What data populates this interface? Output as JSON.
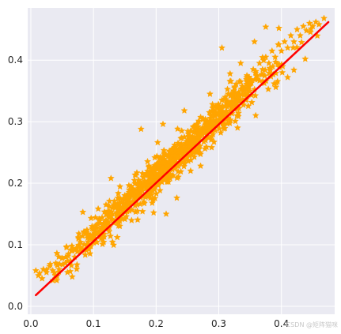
{
  "chart_data": {
    "type": "scatter",
    "title": "",
    "xlabel": "",
    "ylabel": "",
    "xlim": [
      -0.005,
      0.485
    ],
    "ylim": [
      -0.013,
      0.485
    ],
    "grid": true,
    "x_ticks": [
      "0.0",
      "0.1",
      "0.2",
      "0.3",
      "0.4"
    ],
    "x_tick_values": [
      0.0,
      0.1,
      0.2,
      0.3,
      0.4
    ],
    "y_ticks": [
      "0.0",
      "0.1",
      "0.2",
      "0.3",
      "0.4"
    ],
    "y_tick_values": [
      0.0,
      0.1,
      0.2,
      0.3,
      0.4
    ],
    "series": [
      {
        "kind": "scatter",
        "marker": "star",
        "color": "#FFA500",
        "approx_count": 1000,
        "x_range": [
          0.008,
          0.47
        ],
        "y_range": [
          0.042,
          0.47
        ],
        "points": [
          [
            0.008,
            0.058
          ],
          [
            0.012,
            0.05
          ],
          [
            0.018,
            0.045
          ],
          [
            0.02,
            0.06
          ],
          [
            0.025,
            0.055
          ],
          [
            0.03,
            0.065
          ],
          [
            0.035,
            0.058
          ],
          [
            0.04,
            0.07
          ],
          [
            0.045,
            0.06
          ],
          [
            0.05,
            0.078
          ],
          [
            0.055,
            0.07
          ],
          [
            0.06,
            0.085
          ],
          [
            0.065,
            0.09
          ],
          [
            0.07,
            0.08
          ],
          [
            0.076,
            0.11
          ],
          [
            0.08,
            0.095
          ],
          [
            0.085,
            0.12
          ],
          [
            0.09,
            0.1
          ],
          [
            0.095,
            0.115
          ],
          [
            0.1,
            0.125
          ],
          [
            0.105,
            0.12
          ],
          [
            0.11,
            0.135
          ],
          [
            0.115,
            0.125
          ],
          [
            0.12,
            0.14
          ],
          [
            0.12,
            0.15
          ],
          [
            0.125,
            0.145
          ],
          [
            0.13,
            0.15
          ],
          [
            0.13,
            0.16
          ],
          [
            0.135,
            0.165
          ],
          [
            0.14,
            0.16
          ],
          [
            0.14,
            0.175
          ],
          [
            0.145,
            0.15
          ],
          [
            0.15,
            0.18
          ],
          [
            0.15,
            0.165
          ],
          [
            0.155,
            0.175
          ],
          [
            0.16,
            0.185
          ],
          [
            0.16,
            0.195
          ],
          [
            0.165,
            0.18
          ],
          [
            0.17,
            0.2
          ],
          [
            0.175,
            0.19
          ],
          [
            0.18,
            0.21
          ],
          [
            0.18,
            0.198
          ],
          [
            0.185,
            0.215
          ],
          [
            0.19,
            0.205
          ],
          [
            0.195,
            0.225
          ],
          [
            0.2,
            0.21
          ],
          [
            0.2,
            0.23
          ],
          [
            0.205,
            0.24
          ],
          [
            0.21,
            0.225
          ],
          [
            0.215,
            0.245
          ],
          [
            0.22,
            0.235
          ],
          [
            0.225,
            0.255
          ],
          [
            0.23,
            0.245
          ],
          [
            0.235,
            0.265
          ],
          [
            0.24,
            0.255
          ],
          [
            0.245,
            0.275
          ],
          [
            0.25,
            0.265
          ],
          [
            0.255,
            0.285
          ],
          [
            0.26,
            0.27
          ],
          [
            0.265,
            0.295
          ],
          [
            0.27,
            0.285
          ],
          [
            0.275,
            0.305
          ],
          [
            0.28,
            0.295
          ],
          [
            0.285,
            0.315
          ],
          [
            0.29,
            0.3
          ],
          [
            0.295,
            0.325
          ],
          [
            0.3,
            0.315
          ],
          [
            0.305,
            0.335
          ],
          [
            0.31,
            0.325
          ],
          [
            0.315,
            0.345
          ],
          [
            0.32,
            0.33
          ],
          [
            0.325,
            0.355
          ],
          [
            0.33,
            0.345
          ],
          [
            0.335,
            0.365
          ],
          [
            0.34,
            0.355
          ],
          [
            0.345,
            0.375
          ],
          [
            0.35,
            0.365
          ],
          [
            0.355,
            0.385
          ],
          [
            0.36,
            0.375
          ],
          [
            0.365,
            0.395
          ],
          [
            0.37,
            0.385
          ],
          [
            0.375,
            0.405
          ],
          [
            0.38,
            0.395
          ],
          [
            0.385,
            0.415
          ],
          [
            0.39,
            0.405
          ],
          [
            0.395,
            0.425
          ],
          [
            0.4,
            0.415
          ],
          [
            0.405,
            0.43
          ],
          [
            0.41,
            0.42
          ],
          [
            0.415,
            0.44
          ],
          [
            0.42,
            0.43
          ],
          [
            0.425,
            0.45
          ],
          [
            0.43,
            0.44
          ],
          [
            0.435,
            0.455
          ],
          [
            0.44,
            0.448
          ],
          [
            0.445,
            0.46
          ],
          [
            0.45,
            0.455
          ],
          [
            0.455,
            0.462
          ],
          [
            0.46,
            0.458
          ],
          [
            0.468,
            0.468
          ],
          [
            0.128,
            0.208
          ],
          [
            0.083,
            0.153
          ],
          [
            0.176,
            0.288
          ],
          [
            0.211,
            0.296
          ],
          [
            0.305,
            0.42
          ],
          [
            0.233,
            0.176
          ],
          [
            0.271,
            0.228
          ],
          [
            0.216,
            0.15
          ],
          [
            0.196,
            0.152
          ],
          [
            0.109,
            0.142
          ],
          [
            0.138,
            0.112
          ],
          [
            0.255,
            0.22
          ],
          [
            0.286,
            0.345
          ],
          [
            0.33,
            0.29
          ],
          [
            0.359,
            0.31
          ],
          [
            0.391,
            0.356
          ],
          [
            0.41,
            0.372
          ],
          [
            0.42,
            0.384
          ],
          [
            0.438,
            0.402
          ],
          [
            0.357,
            0.43
          ],
          [
            0.375,
            0.454
          ],
          [
            0.396,
            0.452
          ],
          [
            0.335,
            0.395
          ],
          [
            0.318,
            0.378
          ],
          [
            0.245,
            0.318
          ]
        ]
      },
      {
        "kind": "line",
        "color": "#FF0000",
        "x": [
          0.008,
          0.475
        ],
        "y": [
          0.018,
          0.462
        ]
      }
    ]
  },
  "watermark": "CSDN @矩阵猫咪"
}
